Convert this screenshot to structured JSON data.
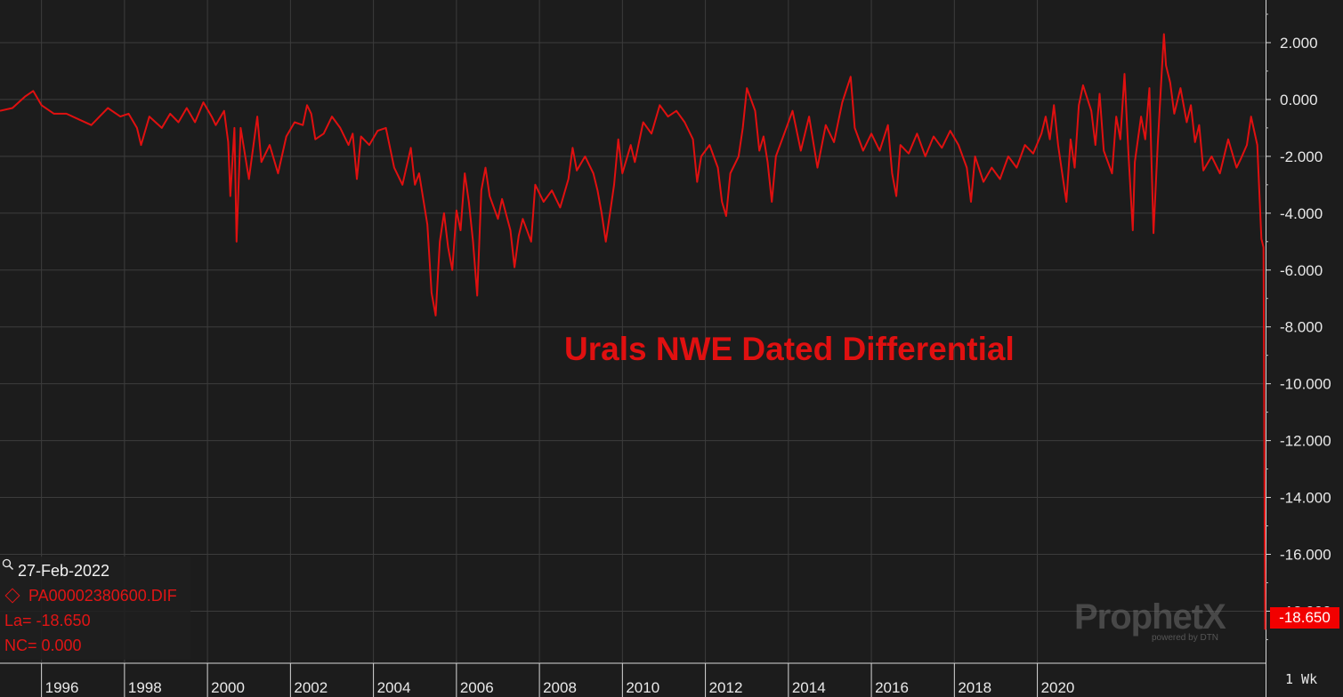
{
  "chart_data": {
    "type": "line",
    "title": "Urals NWE Dated Differential",
    "series": [
      {
        "symbol": "PA00002380600.DIF",
        "color": "#e01010",
        "points": [
          [
            1995.0,
            -0.4
          ],
          [
            1995.3,
            -0.3
          ],
          [
            1995.6,
            0.1
          ],
          [
            1995.8,
            0.3
          ],
          [
            1996.0,
            -0.2
          ],
          [
            1996.3,
            -0.5
          ],
          [
            1996.6,
            -0.5
          ],
          [
            1996.9,
            -0.7
          ],
          [
            1997.2,
            -0.9
          ],
          [
            1997.4,
            -0.6
          ],
          [
            1997.6,
            -0.3
          ],
          [
            1997.9,
            -0.6
          ],
          [
            1998.1,
            -0.5
          ],
          [
            1998.3,
            -1.0
          ],
          [
            1998.4,
            -1.6
          ],
          [
            1998.6,
            -0.6
          ],
          [
            1998.9,
            -1.0
          ],
          [
            1999.1,
            -0.5
          ],
          [
            1999.3,
            -0.8
          ],
          [
            1999.5,
            -0.3
          ],
          [
            1999.7,
            -0.8
          ],
          [
            1999.9,
            -0.1
          ],
          [
            2000.1,
            -0.6
          ],
          [
            2000.2,
            -0.9
          ],
          [
            2000.4,
            -0.4
          ],
          [
            2000.5,
            -1.5
          ],
          [
            2000.55,
            -3.4
          ],
          [
            2000.65,
            -1.0
          ],
          [
            2000.7,
            -5.0
          ],
          [
            2000.8,
            -1.0
          ],
          [
            2001.0,
            -2.8
          ],
          [
            2001.2,
            -0.6
          ],
          [
            2001.3,
            -2.2
          ],
          [
            2001.5,
            -1.6
          ],
          [
            2001.7,
            -2.6
          ],
          [
            2001.9,
            -1.3
          ],
          [
            2002.1,
            -0.8
          ],
          [
            2002.3,
            -0.9
          ],
          [
            2002.4,
            -0.2
          ],
          [
            2002.5,
            -0.5
          ],
          [
            2002.6,
            -1.4
          ],
          [
            2002.8,
            -1.2
          ],
          [
            2003.0,
            -0.6
          ],
          [
            2003.2,
            -1.0
          ],
          [
            2003.4,
            -1.6
          ],
          [
            2003.5,
            -1.2
          ],
          [
            2003.6,
            -2.8
          ],
          [
            2003.7,
            -1.3
          ],
          [
            2003.9,
            -1.6
          ],
          [
            2004.1,
            -1.1
          ],
          [
            2004.3,
            -1.0
          ],
          [
            2004.5,
            -2.4
          ],
          [
            2004.7,
            -3.0
          ],
          [
            2004.9,
            -1.7
          ],
          [
            2005.0,
            -3.0
          ],
          [
            2005.1,
            -2.6
          ],
          [
            2005.3,
            -4.4
          ],
          [
            2005.4,
            -6.8
          ],
          [
            2005.5,
            -7.6
          ],
          [
            2005.6,
            -5.0
          ],
          [
            2005.7,
            -4.0
          ],
          [
            2005.8,
            -5.2
          ],
          [
            2005.9,
            -6.0
          ],
          [
            2006.0,
            -3.9
          ],
          [
            2006.1,
            -4.6
          ],
          [
            2006.2,
            -2.6
          ],
          [
            2006.3,
            -3.6
          ],
          [
            2006.4,
            -5.0
          ],
          [
            2006.5,
            -6.9
          ],
          [
            2006.6,
            -3.2
          ],
          [
            2006.7,
            -2.4
          ],
          [
            2006.8,
            -3.4
          ],
          [
            2007.0,
            -4.2
          ],
          [
            2007.1,
            -3.5
          ],
          [
            2007.3,
            -4.6
          ],
          [
            2007.4,
            -5.9
          ],
          [
            2007.5,
            -4.8
          ],
          [
            2007.6,
            -4.2
          ],
          [
            2007.8,
            -5.0
          ],
          [
            2007.9,
            -3.0
          ],
          [
            2008.1,
            -3.6
          ],
          [
            2008.3,
            -3.2
          ],
          [
            2008.5,
            -3.8
          ],
          [
            2008.7,
            -2.8
          ],
          [
            2008.8,
            -1.7
          ],
          [
            2008.9,
            -2.5
          ],
          [
            2009.1,
            -2.0
          ],
          [
            2009.3,
            -2.6
          ],
          [
            2009.4,
            -3.2
          ],
          [
            2009.5,
            -4.0
          ],
          [
            2009.6,
            -5.0
          ],
          [
            2009.7,
            -4.0
          ],
          [
            2009.8,
            -3.0
          ],
          [
            2009.9,
            -1.4
          ],
          [
            2010.0,
            -2.6
          ],
          [
            2010.2,
            -1.6
          ],
          [
            2010.3,
            -2.2
          ],
          [
            2010.5,
            -0.8
          ],
          [
            2010.7,
            -1.2
          ],
          [
            2010.9,
            -0.2
          ],
          [
            2011.1,
            -0.6
          ],
          [
            2011.3,
            -0.4
          ],
          [
            2011.5,
            -0.8
          ],
          [
            2011.7,
            -1.4
          ],
          [
            2011.8,
            -2.9
          ],
          [
            2011.9,
            -2.0
          ],
          [
            2012.1,
            -1.6
          ],
          [
            2012.3,
            -2.4
          ],
          [
            2012.4,
            -3.6
          ],
          [
            2012.5,
            -4.1
          ],
          [
            2012.6,
            -2.6
          ],
          [
            2012.8,
            -2.0
          ],
          [
            2012.9,
            -1.0
          ],
          [
            2013.0,
            0.4
          ],
          [
            2013.2,
            -0.4
          ],
          [
            2013.3,
            -1.8
          ],
          [
            2013.4,
            -1.3
          ],
          [
            2013.5,
            -2.2
          ],
          [
            2013.6,
            -3.6
          ],
          [
            2013.7,
            -2.0
          ],
          [
            2013.9,
            -1.2
          ],
          [
            2014.1,
            -0.4
          ],
          [
            2014.3,
            -1.8
          ],
          [
            2014.5,
            -0.6
          ],
          [
            2014.7,
            -2.4
          ],
          [
            2014.9,
            -0.9
          ],
          [
            2015.1,
            -1.5
          ],
          [
            2015.3,
            -0.1
          ],
          [
            2015.5,
            0.8
          ],
          [
            2015.6,
            -1.0
          ],
          [
            2015.8,
            -1.8
          ],
          [
            2016.0,
            -1.2
          ],
          [
            2016.2,
            -1.8
          ],
          [
            2016.4,
            -0.9
          ],
          [
            2016.5,
            -2.6
          ],
          [
            2016.6,
            -3.4
          ],
          [
            2016.7,
            -1.6
          ],
          [
            2016.9,
            -1.9
          ],
          [
            2017.1,
            -1.2
          ],
          [
            2017.3,
            -2.0
          ],
          [
            2017.5,
            -1.3
          ],
          [
            2017.7,
            -1.7
          ],
          [
            2017.9,
            -1.1
          ],
          [
            2018.1,
            -1.6
          ],
          [
            2018.3,
            -2.4
          ],
          [
            2018.4,
            -3.6
          ],
          [
            2018.5,
            -2.0
          ],
          [
            2018.7,
            -2.9
          ],
          [
            2018.9,
            -2.4
          ],
          [
            2019.1,
            -2.8
          ],
          [
            2019.3,
            -2.0
          ],
          [
            2019.5,
            -2.4
          ],
          [
            2019.7,
            -1.6
          ],
          [
            2019.9,
            -1.9
          ],
          [
            2020.1,
            -1.2
          ],
          [
            2020.2,
            -0.6
          ],
          [
            2020.3,
            -1.4
          ],
          [
            2020.4,
            -0.2
          ],
          [
            2020.5,
            -1.6
          ],
          [
            2020.6,
            -2.6
          ],
          [
            2020.7,
            -3.6
          ],
          [
            2020.8,
            -1.4
          ],
          [
            2020.9,
            -2.4
          ],
          [
            2021.0,
            -0.2
          ],
          [
            2021.1,
            0.5
          ],
          [
            2021.3,
            -0.4
          ],
          [
            2021.4,
            -1.6
          ],
          [
            2021.5,
            0.2
          ],
          [
            2021.6,
            -1.8
          ],
          [
            2021.8,
            -2.6
          ],
          [
            2021.9,
            -0.6
          ],
          [
            2022.0,
            -1.4
          ],
          [
            2022.1,
            0.9
          ],
          [
            2022.2,
            -2.0
          ],
          [
            2022.3,
            -4.6
          ],
          [
            2022.35,
            -2.2
          ],
          [
            2022.5,
            -0.6
          ],
          [
            2022.6,
            -1.4
          ],
          [
            2022.7,
            0.4
          ],
          [
            2022.8,
            -4.7
          ],
          [
            2022.9,
            -1.6
          ],
          [
            2023.0,
            1.0
          ],
          [
            2023.05,
            2.3
          ],
          [
            2023.1,
            1.2
          ],
          [
            2023.2,
            0.6
          ],
          [
            2023.3,
            -0.5
          ],
          [
            2023.45,
            0.4
          ],
          [
            2023.6,
            -0.8
          ],
          [
            2023.7,
            -0.2
          ],
          [
            2023.8,
            -1.5
          ],
          [
            2023.9,
            -0.9
          ],
          [
            2024.0,
            -2.5
          ],
          [
            2024.2,
            -2.0
          ],
          [
            2024.4,
            -2.6
          ],
          [
            2024.6,
            -1.4
          ],
          [
            2024.8,
            -2.4
          ],
          [
            2024.9,
            -2.1
          ],
          [
            2025.05,
            -1.6
          ],
          [
            2025.15,
            -0.6
          ],
          [
            2025.3,
            -1.6
          ],
          [
            2025.4,
            -4.9
          ],
          [
            2025.45,
            -5.2
          ],
          [
            2025.47,
            -12.0
          ],
          [
            2025.49,
            -18.65
          ]
        ]
      }
    ],
    "xlim": [
      1995.0,
      2025.5
    ],
    "ylim": [
      -19.8,
      3.5
    ],
    "xticks": [
      "1996",
      "1998",
      "2000",
      "2002",
      "2004",
      "2006",
      "2008",
      "2010",
      "2012",
      "2014",
      "2016",
      "2018",
      "2020"
    ],
    "xtick_values": [
      1996,
      1998,
      2000,
      2002,
      2004,
      2006,
      2008,
      2010,
      2012,
      2014,
      2016,
      2018,
      2020
    ],
    "yticks": [
      "2.000",
      "0.000",
      "-2.000",
      "-4.000",
      "-6.000",
      "-8.000",
      "-10.000",
      "-12.000",
      "-14.000",
      "-16.000",
      "-18.000"
    ],
    "ytick_values": [
      2,
      0,
      -2,
      -4,
      -6,
      -8,
      -10,
      -12,
      -14,
      -16,
      -18
    ],
    "last_value_label": "-18.650",
    "grid": true,
    "y_axis_side": "right",
    "colors": {
      "background": "#1c1c1c",
      "grid": "#3c3c3c",
      "line": "#e01010",
      "axis_text": "#e8e8e8"
    }
  },
  "info": {
    "date": "27-Feb-2022",
    "symbol": "PA00002380600.DIF",
    "last": "La= -18.650",
    "net_change": "NC= 0.000"
  },
  "watermark": {
    "brand": "ProphetX",
    "sub": "powered by DTN"
  },
  "period": "1 Wk"
}
